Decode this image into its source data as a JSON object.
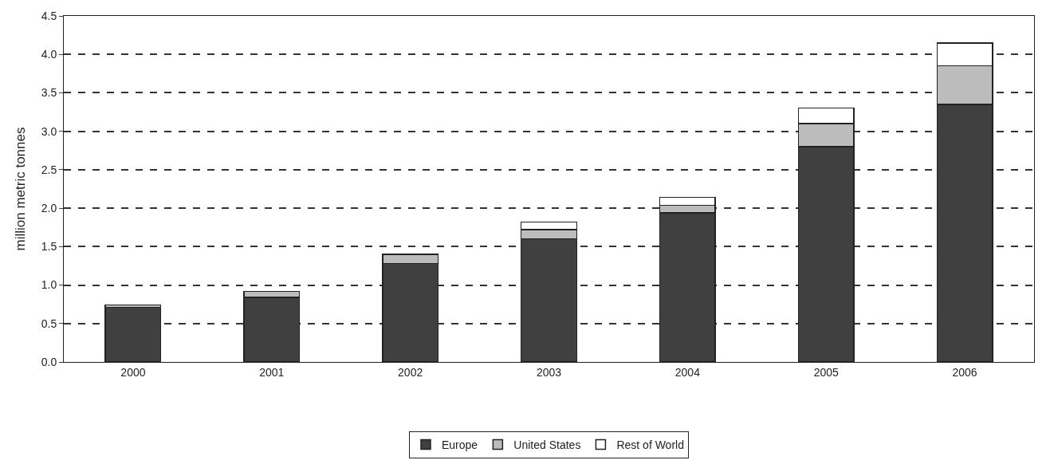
{
  "chart_data": {
    "type": "bar",
    "stacked": true,
    "ylabel": "million metric tonnes",
    "categories": [
      "2000",
      "2001",
      "2002",
      "2003",
      "2004",
      "2005",
      "2006"
    ],
    "series": [
      {
        "name": "Europe",
        "color": "#404040",
        "values": [
          0.71,
          0.84,
          1.28,
          1.6,
          1.94,
          2.8,
          3.35
        ]
      },
      {
        "name": "United States",
        "color": "#bcbcbc",
        "values": [
          0.03,
          0.08,
          0.12,
          0.12,
          0.1,
          0.3,
          0.5
        ]
      },
      {
        "name": "Rest of World",
        "color": "#ffffff",
        "values": [
          null,
          null,
          null,
          0.1,
          0.1,
          0.2,
          0.3
        ]
      }
    ],
    "ylim": [
      0,
      4.5
    ],
    "yticks": [
      {
        "value": 0,
        "label": "0.0"
      },
      {
        "value": 0.5,
        "label": "0.5"
      },
      {
        "value": 1,
        "label": "1.0"
      },
      {
        "value": 1.5,
        "label": "1.5"
      },
      {
        "value": 2,
        "label": "2.0"
      },
      {
        "value": 2.5,
        "label": "2.5"
      },
      {
        "value": 3,
        "label": "3.0"
      },
      {
        "value": 3.5,
        "label": "3.5"
      },
      {
        "value": 4,
        "label": "4.0"
      },
      {
        "value": 4.5,
        "label": "4.5"
      }
    ],
    "grid": "y",
    "legend": "bottom"
  }
}
